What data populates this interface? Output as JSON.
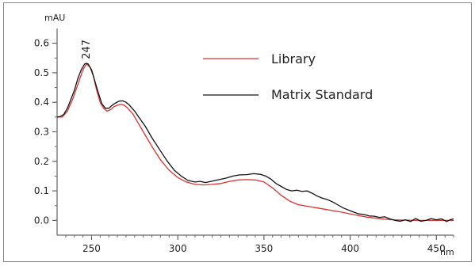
{
  "chart_data": {
    "type": "line",
    "title": "",
    "xlabel": "nm",
    "ylabel": "mAU",
    "xlim": [
      230,
      460
    ],
    "ylim": [
      -0.05,
      0.65
    ],
    "xticks": [
      250,
      300,
      350,
      400,
      450
    ],
    "xtick_labels": [
      "250",
      "300",
      "350",
      "400",
      "450"
    ],
    "yticks": [
      0.0,
      0.1,
      0.2,
      0.3,
      0.4,
      0.5,
      0.6
    ],
    "ytick_labels": [
      "0.0",
      "0.1",
      "0.2",
      "0.3",
      "0.4",
      "0.5",
      "0.6"
    ],
    "grid": false,
    "legend_position": "top-right",
    "annotations": [
      {
        "text": "247",
        "x": 247,
        "y": 0.53
      }
    ],
    "series": [
      {
        "name": "Library",
        "color": "#e03030",
        "points": [
          [
            230,
            0.35
          ],
          [
            233,
            0.35
          ],
          [
            236,
            0.37
          ],
          [
            239,
            0.41
          ],
          [
            242,
            0.46
          ],
          [
            245,
            0.51
          ],
          [
            247,
            0.53
          ],
          [
            249,
            0.52
          ],
          [
            251,
            0.49
          ],
          [
            253,
            0.44
          ],
          [
            255,
            0.4
          ],
          [
            257,
            0.38
          ],
          [
            259,
            0.37
          ],
          [
            261,
            0.375
          ],
          [
            263,
            0.385
          ],
          [
            265,
            0.39
          ],
          [
            267,
            0.393
          ],
          [
            269,
            0.39
          ],
          [
            271,
            0.38
          ],
          [
            274,
            0.36
          ],
          [
            277,
            0.33
          ],
          [
            280,
            0.3
          ],
          [
            285,
            0.25
          ],
          [
            290,
            0.205
          ],
          [
            295,
            0.17
          ],
          [
            300,
            0.145
          ],
          [
            305,
            0.13
          ],
          [
            310,
            0.122
          ],
          [
            315,
            0.12
          ],
          [
            320,
            0.122
          ],
          [
            325,
            0.125
          ],
          [
            330,
            0.132
          ],
          [
            335,
            0.137
          ],
          [
            340,
            0.138
          ],
          [
            345,
            0.137
          ],
          [
            350,
            0.13
          ],
          [
            355,
            0.11
          ],
          [
            360,
            0.085
          ],
          [
            365,
            0.065
          ],
          [
            370,
            0.053
          ],
          [
            375,
            0.048
          ],
          [
            380,
            0.043
          ],
          [
            385,
            0.038
          ],
          [
            390,
            0.033
          ],
          [
            395,
            0.028
          ],
          [
            400,
            0.022
          ],
          [
            405,
            0.016
          ],
          [
            410,
            0.011
          ],
          [
            415,
            0.007
          ],
          [
            420,
            0.004
          ],
          [
            425,
            0.002
          ],
          [
            430,
            0.001
          ],
          [
            440,
            0.0
          ],
          [
            450,
            0.0
          ],
          [
            460,
            0.0
          ]
        ]
      },
      {
        "name": "Matrix Standard",
        "color": "#111111",
        "points": [
          [
            230,
            0.35
          ],
          [
            232,
            0.352
          ],
          [
            234,
            0.36
          ],
          [
            236,
            0.38
          ],
          [
            238,
            0.41
          ],
          [
            240,
            0.44
          ],
          [
            242,
            0.48
          ],
          [
            244,
            0.51
          ],
          [
            246,
            0.53
          ],
          [
            247,
            0.532
          ],
          [
            248,
            0.53
          ],
          [
            250,
            0.51
          ],
          [
            252,
            0.47
          ],
          [
            254,
            0.43
          ],
          [
            256,
            0.395
          ],
          [
            258,
            0.38
          ],
          [
            260,
            0.38
          ],
          [
            262,
            0.39
          ],
          [
            264,
            0.398
          ],
          [
            266,
            0.404
          ],
          [
            268,
            0.405
          ],
          [
            270,
            0.4
          ],
          [
            272,
            0.39
          ],
          [
            275,
            0.37
          ],
          [
            278,
            0.345
          ],
          [
            281,
            0.32
          ],
          [
            285,
            0.28
          ],
          [
            290,
            0.235
          ],
          [
            294,
            0.2
          ],
          [
            298,
            0.17
          ],
          [
            302,
            0.15
          ],
          [
            306,
            0.135
          ],
          [
            310,
            0.13
          ],
          [
            313,
            0.132
          ],
          [
            316,
            0.128
          ],
          [
            320,
            0.133
          ],
          [
            324,
            0.138
          ],
          [
            328,
            0.143
          ],
          [
            332,
            0.15
          ],
          [
            336,
            0.154
          ],
          [
            340,
            0.155
          ],
          [
            344,
            0.158
          ],
          [
            348,
            0.156
          ],
          [
            351,
            0.15
          ],
          [
            354,
            0.14
          ],
          [
            357,
            0.125
          ],
          [
            360,
            0.115
          ],
          [
            363,
            0.105
          ],
          [
            366,
            0.1
          ],
          [
            369,
            0.102
          ],
          [
            372,
            0.098
          ],
          [
            375,
            0.1
          ],
          [
            378,
            0.092
          ],
          [
            381,
            0.082
          ],
          [
            384,
            0.075
          ],
          [
            387,
            0.07
          ],
          [
            390,
            0.062
          ],
          [
            393,
            0.052
          ],
          [
            396,
            0.042
          ],
          [
            399,
            0.035
          ],
          [
            402,
            0.028
          ],
          [
            405,
            0.022
          ],
          [
            408,
            0.02
          ],
          [
            411,
            0.015
          ],
          [
            414,
            0.014
          ],
          [
            417,
            0.01
          ],
          [
            420,
            0.012
          ],
          [
            423,
            0.005
          ],
          [
            426,
            0.0
          ],
          [
            429,
            -0.003
          ],
          [
            432,
            0.002
          ],
          [
            435,
            -0.004
          ],
          [
            438,
            0.006
          ],
          [
            441,
            -0.003
          ],
          [
            444,
            0.0
          ],
          [
            447,
            0.006
          ],
          [
            450,
            0.002
          ],
          [
            453,
            0.005
          ],
          [
            456,
            -0.004
          ],
          [
            458,
            0.002
          ],
          [
            460,
            0.005
          ]
        ]
      }
    ]
  }
}
